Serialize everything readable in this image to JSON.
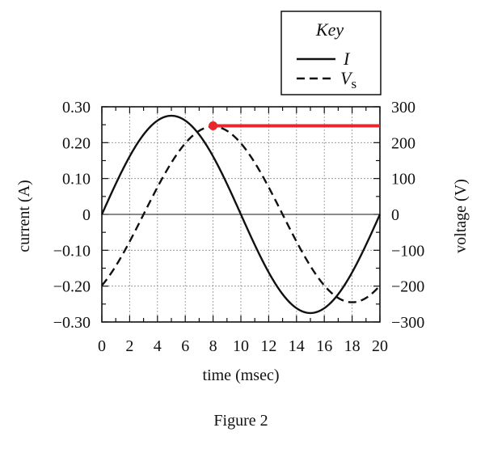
{
  "chart_data": {
    "type": "line",
    "xlabel": "time (msec)",
    "ylabel_left": "current (A)",
    "ylabel_right": "voltage (V)",
    "xlim": [
      0,
      20
    ],
    "ylim_left": [
      -0.3,
      0.3
    ],
    "ylim_right": [
      -300,
      300
    ],
    "x_ticks": [
      0,
      2,
      4,
      6,
      8,
      10,
      12,
      14,
      16,
      18,
      20
    ],
    "x_tick_labels": [
      "0",
      "2",
      "4",
      "6",
      "8",
      "10",
      "12",
      "14",
      "16",
      "18",
      "20"
    ],
    "y_ticks_left": [
      0.3,
      0.2,
      0.1,
      0,
      -0.1,
      -0.2,
      -0.3
    ],
    "y_tick_labels_left": [
      "0.30",
      "0.20",
      "0.10",
      "0",
      "−0.10",
      "−0.20",
      "−0.30"
    ],
    "y_ticks_right": [
      300,
      200,
      100,
      0,
      -100,
      -200,
      -300
    ],
    "y_tick_labels_right": [
      "300",
      "200",
      "100",
      "0",
      "−100",
      "−200",
      "−300"
    ],
    "grid": true,
    "legend": {
      "title": "Key",
      "placement": "top-right",
      "entries": [
        {
          "label": "I",
          "style": "solid"
        },
        {
          "label": "V",
          "subscript": "s",
          "style": "dashed"
        }
      ]
    },
    "series": [
      {
        "name": "I",
        "axis": "left",
        "style": "solid",
        "amplitude": 0.275,
        "period": 20,
        "phase_shift": 0,
        "offset": 0
      },
      {
        "name": "Vs",
        "axis": "right",
        "style": "dashed",
        "amplitude": 245,
        "period": 20,
        "phase_shift": 3,
        "offset": 0
      }
    ],
    "annotations": [
      {
        "type": "marker-line",
        "color": "#e8262b",
        "x_start": 8,
        "x_end": 20,
        "y_value_right": 247
      }
    ],
    "caption": "Figure 2"
  },
  "colors": {
    "axis": "#111111",
    "grid": "#8c8c8c",
    "curve": "#111111",
    "highlight": "#e8262b"
  }
}
